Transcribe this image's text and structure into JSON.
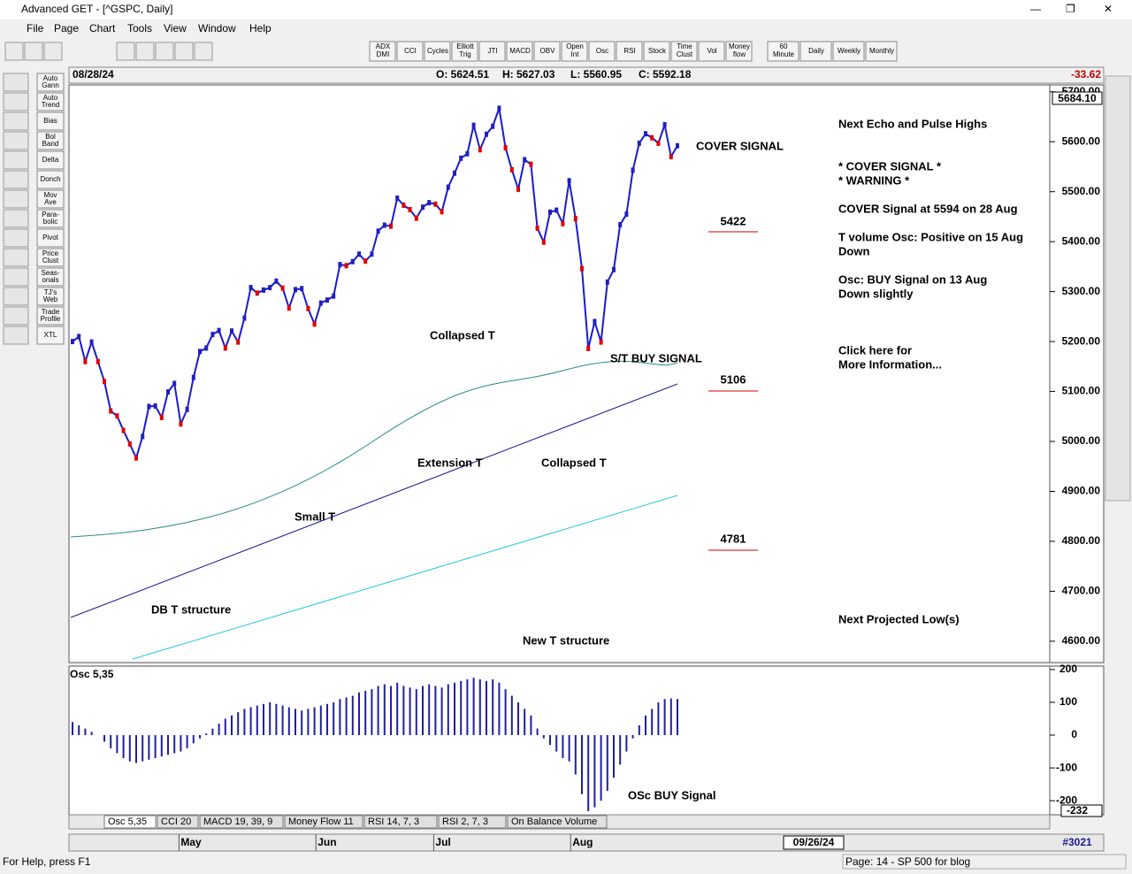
{
  "window": {
    "title": "Advanced GET - [^GSPC, Daily]"
  },
  "menu": [
    "File",
    "Page",
    "Chart",
    "Tools",
    "View",
    "Window",
    "Help"
  ],
  "toolbar": [
    [
      "ADX",
      "DMI"
    ],
    [
      "CCI"
    ],
    [
      "Cycles"
    ],
    [
      "Elliott",
      "Trig"
    ],
    [
      "JTI"
    ],
    [
      "MACD"
    ],
    [
      "OBV"
    ],
    [
      "Open",
      "Int"
    ],
    [
      "Osc"
    ],
    [
      "RSI"
    ],
    [
      "Stock"
    ],
    [
      "Time",
      "Clust"
    ],
    [
      "Vol"
    ],
    [
      "Money",
      "flow"
    ],
    [
      "60",
      "Minute"
    ],
    [
      "Daily"
    ],
    [
      "Weekly"
    ],
    [
      "Monthly"
    ]
  ],
  "left_toolbar": [
    [
      "Auto",
      "Gann"
    ],
    [
      "Auto",
      "Trend"
    ],
    [
      "Bias"
    ],
    [
      "Bol",
      "Band"
    ],
    [
      "Delta"
    ],
    [
      "Donch"
    ],
    [
      "Mov",
      "Ave"
    ],
    [
      "Para-",
      "bolic"
    ],
    [
      "Pivot"
    ],
    [
      "Price",
      "Clust"
    ],
    [
      "Seas-",
      "onals"
    ],
    [
      "TJ's",
      "Web"
    ],
    [
      "Trade",
      "Profile"
    ],
    [
      "XTL"
    ]
  ],
  "header": {
    "date": "08/28/24",
    "open": "O: 5624.51",
    "high": "H: 5627.03",
    "low": "L: 5560.95",
    "close": "C: 5592.18",
    "change": "-33.62"
  },
  "price_chart": {
    "type": "line",
    "price_marker": "5684.10",
    "values": [
      5200,
      5210,
      5160,
      5199,
      5160,
      5120,
      5061,
      5051,
      5022,
      4995,
      4967,
      5010,
      5070,
      5071,
      5048,
      5099,
      5116,
      5035,
      5064,
      5128,
      5180,
      5187,
      5214,
      5222,
      5187,
      5221,
      5199,
      5247,
      5308,
      5297,
      5303,
      5308,
      5321,
      5307,
      5267,
      5304,
      5306,
      5266,
      5235,
      5277,
      5283,
      5291,
      5354,
      5352,
      5360,
      5375,
      5361,
      5375,
      5421,
      5433,
      5431,
      5487,
      5473,
      5464,
      5447,
      5469,
      5478,
      5475,
      5460,
      5509,
      5537,
      5567,
      5576,
      5633,
      5584,
      5615,
      5631,
      5667,
      5588,
      5544,
      5505,
      5564,
      5555,
      5427,
      5399,
      5459,
      5463,
      5436,
      5522,
      5446,
      5346,
      5186,
      5240,
      5199,
      5319,
      5344,
      5434,
      5455,
      5543,
      5597,
      5616,
      5608,
      5597,
      5634,
      5570,
      5592
    ],
    "ylim": [
      4559,
      5712
    ],
    "yticks": [
      {
        "value": 5700,
        "label": "5700.00"
      },
      {
        "value": 5600,
        "label": "5600.00"
      },
      {
        "value": 5500,
        "label": "5500.00"
      },
      {
        "value": 5400,
        "label": "5400.00"
      },
      {
        "value": 5300,
        "label": "5300.00"
      },
      {
        "value": 5200,
        "label": "5200.00"
      },
      {
        "value": 5100,
        "label": "5100.00"
      },
      {
        "value": 5000,
        "label": "5000.00"
      },
      {
        "value": 4900,
        "label": "4900.00"
      },
      {
        "value": 4800,
        "label": "4800.00"
      },
      {
        "value": 4700,
        "label": "4700.00"
      },
      {
        "value": 4600,
        "label": "4600.00"
      }
    ],
    "xticks": [
      {
        "value": 17,
        "label": "May"
      },
      {
        "value": 38.5,
        "label": "Jun"
      },
      {
        "value": 57,
        "label": "Jul"
      },
      {
        "value": 78.5,
        "label": "Aug"
      }
    ],
    "annotations": [
      "COVER SIGNAL",
      "Collapsed T",
      "S/T BUY SIGNAL",
      "Extension T",
      "Collapsed T",
      "Small T",
      "DB T structure",
      "New T structure"
    ],
    "levels": [
      "5422",
      "5106",
      "4781"
    ],
    "side_text": [
      "Next Echo and Pulse Highs",
      "* COVER SIGNAL *",
      "* WARNING *",
      "COVER Signal at 5594 on 28 Aug",
      "T volume Osc: Positive on 15 Aug",
      "Down",
      "Osc: BUY Signal on 13 Aug",
      "Down slightly",
      "Click here for",
      "More Information...",
      "Next Projected Low(s)"
    ]
  },
  "oscillator": {
    "type": "bar",
    "title": "Osc 5,35",
    "color": "#2020a0",
    "marker": "-232",
    "annotation": "OSc BUY Signal",
    "values": [
      40,
      30,
      20,
      10,
      0,
      -20,
      -40,
      -55,
      -70,
      -80,
      -85,
      -80,
      -75,
      -70,
      -65,
      -60,
      -55,
      -50,
      -40,
      -25,
      -10,
      5,
      20,
      35,
      50,
      60,
      70,
      80,
      85,
      90,
      95,
      100,
      95,
      90,
      85,
      80,
      75,
      80,
      85,
      90,
      95,
      100,
      110,
      115,
      120,
      130,
      135,
      140,
      150,
      155,
      150,
      160,
      150,
      145,
      140,
      150,
      155,
      150,
      145,
      155,
      160,
      165,
      170,
      175,
      170,
      165,
      170,
      160,
      140,
      120,
      100,
      80,
      60,
      20,
      -10,
      -30,
      -50,
      -70,
      -80,
      -120,
      -180,
      -232,
      -220,
      -200,
      -170,
      -130,
      -90,
      -50,
      -10,
      30,
      60,
      80,
      100,
      110,
      112,
      110
    ],
    "ylim": [
      -240,
      205
    ],
    "yticks": [
      200,
      100,
      0,
      -100,
      -200
    ],
    "tabs": [
      "Osc 5,35",
      "CCI 20",
      "MACD 19, 39, 9",
      "Money Flow 11",
      "RSI 14, 7, 3",
      "RSI 2, 7, 3",
      "On Balance Volume"
    ]
  },
  "footer": {
    "date": "09/26/24",
    "id": "#3021"
  },
  "status": {
    "help": "For Help, press F1",
    "page": "Page: 14 - SP 500 for blog"
  }
}
